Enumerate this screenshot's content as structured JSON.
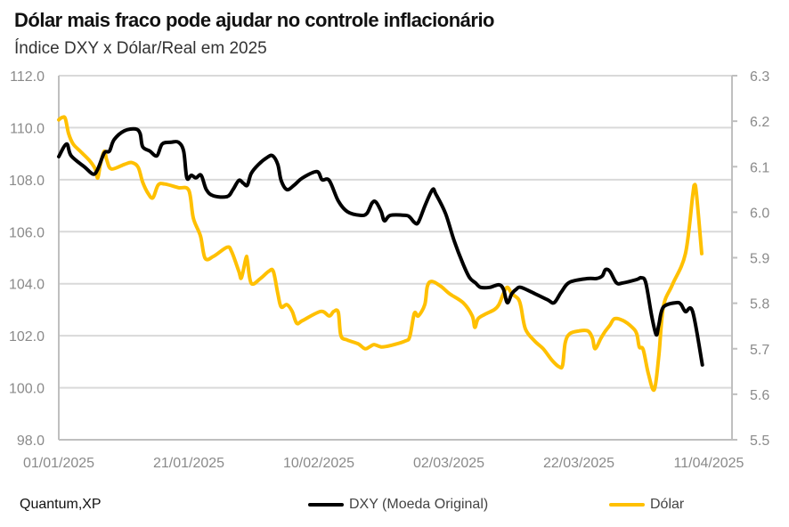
{
  "chart_data": {
    "type": "line",
    "title": "Dólar mais fraco pode ajudar no controle inflacionário",
    "subtitle": "Índice DXY x Dólar/Real em 2025",
    "source": "Quantum,XP",
    "x_unit": "days since 01/01/2025",
    "x_ticks": [
      {
        "day": 0,
        "label": "01/01/2025"
      },
      {
        "day": 20,
        "label": "21/01/2025"
      },
      {
        "day": 40,
        "label": "10/02/2025"
      },
      {
        "day": 60,
        "label": "02/03/2025"
      },
      {
        "day": 80,
        "label": "22/03/2025"
      },
      {
        "day": 100,
        "label": "11/04/2025"
      }
    ],
    "xlim": [
      0,
      100
    ],
    "y_left": {
      "lim": [
        98,
        112
      ],
      "ticks": [
        "98.0",
        "100.0",
        "102.0",
        "104.0",
        "106.0",
        "108.0",
        "110.0",
        "112.0"
      ]
    },
    "y_right": {
      "lim": [
        5.5,
        6.3
      ],
      "ticks": [
        "5.5",
        "5.6",
        "5.7",
        "5.8",
        "5.9",
        "6.0",
        "6.1",
        "6.2",
        "6.3"
      ]
    },
    "grid": true,
    "legend_placement": "bottom",
    "series": [
      {
        "name": "DXY (Moeda Original)",
        "axis": "left",
        "color": "#000000",
        "x": [
          0,
          1.2,
          1.9,
          4,
          5.3,
          6,
          7,
          7.8,
          8.5,
          10.1,
          11.8,
          12.5,
          12.9,
          14,
          15.1,
          15.9,
          17.3,
          18.4,
          19.2,
          19.7,
          20.4,
          21.1,
          21.9,
          22.7,
          23.8,
          25.9,
          26.8,
          27.7,
          28.4,
          29,
          29.6,
          30.7,
          32.1,
          32.9,
          33.7,
          34.2,
          35.1,
          36.2,
          37.5,
          39.7,
          40.5,
          41.6,
          43,
          44.4,
          46.4,
          47.4,
          48.2,
          48.8,
          49.6,
          50.1,
          51,
          53.3,
          54,
          54.7,
          55.3,
          56.4,
          57.5,
          58,
          59.5,
          60.8,
          62.2,
          63.2,
          64.1,
          64.9,
          66.3,
          67.7,
          68.4,
          69,
          69.7,
          70.4,
          71.1,
          73.2,
          75.2,
          76.2,
          77.3,
          78.6,
          81.4,
          82.7,
          83.6,
          84.1,
          84.8,
          85.8,
          86.8,
          88.9,
          89.6,
          90.3,
          91.2,
          91.9,
          92.3,
          93,
          95,
          95.7,
          96.4,
          97.5,
          99
        ],
        "y": [
          108.89,
          109.37,
          108.92,
          108.48,
          108.21,
          108.41,
          109.03,
          109.1,
          109.54,
          109.88,
          109.95,
          109.78,
          109.27,
          109.1,
          108.92,
          109.37,
          109.44,
          109.44,
          109.1,
          108.07,
          108.17,
          108.07,
          108.17,
          107.62,
          107.38,
          107.35,
          107.62,
          107.97,
          107.86,
          107.79,
          108.24,
          108.58,
          108.86,
          108.92,
          108.58,
          107.97,
          107.62,
          107.79,
          108.07,
          108.31,
          108.0,
          107.97,
          107.18,
          106.77,
          106.63,
          106.7,
          107.11,
          107.14,
          106.77,
          106.42,
          106.63,
          106.63,
          106.56,
          106.36,
          106.36,
          107.04,
          107.62,
          107.45,
          106.7,
          105.67,
          104.75,
          104.23,
          104.03,
          103.86,
          103.86,
          103.96,
          103.79,
          103.27,
          103.62,
          103.79,
          103.86,
          103.62,
          103.38,
          103.27,
          103.68,
          104.06,
          104.2,
          104.2,
          104.3,
          104.54,
          104.47,
          104.03,
          104.03,
          104.16,
          104.23,
          104.03,
          102.76,
          102.04,
          102.42,
          103.1,
          103.27,
          103.21,
          102.93,
          102.93,
          100.88
        ]
      },
      {
        "name": "Dólar",
        "axis": "right",
        "color": "#FFC000",
        "x": [
          0,
          0.5,
          1,
          1.5,
          2.2,
          3.3,
          4.7,
          5.6,
          6,
          6.4,
          7,
          7.4,
          8.1,
          10.1,
          11.2,
          12.2,
          12.9,
          13.8,
          14.5,
          15.3,
          16.3,
          18.4,
          20,
          20.7,
          21.8,
          22.5,
          23.8,
          25.9,
          26.6,
          27.7,
          28.1,
          28.8,
          29,
          29.6,
          31,
          32.3,
          33,
          33.7,
          34.2,
          35.1,
          35.9,
          36.6,
          37.5,
          40.3,
          41.6,
          42.3,
          43,
          43.4,
          44.4,
          46,
          47.1,
          47.8,
          48.5,
          49.6,
          51,
          53.3,
          54,
          54.7,
          55.3,
          56.3,
          56.7,
          57.4,
          58.8,
          60.1,
          62.2,
          63.6,
          64,
          64.5,
          65.6,
          67,
          67.7,
          68.4,
          69,
          69.7,
          70.7,
          71.1,
          71.8,
          73.2,
          74.5,
          75.9,
          77,
          77.5,
          77.9,
          78.6,
          80,
          81.4,
          82.1,
          82.5,
          83.4,
          84.1,
          84.8,
          85.5,
          86.8,
          88.2,
          88.9,
          89.3,
          89.9,
          90.7,
          91.6,
          92.3,
          93,
          94.4,
          96.4,
          97.5,
          97.8,
          98.1,
          98.9
        ],
        "y": [
          6.203,
          6.208,
          6.206,
          6.173,
          6.15,
          6.134,
          6.114,
          6.095,
          6.075,
          6.105,
          6.134,
          6.114,
          6.095,
          6.105,
          6.109,
          6.099,
          6.066,
          6.04,
          6.032,
          6.06,
          6.062,
          6.054,
          6.048,
          5.987,
          5.948,
          5.899,
          5.903,
          5.923,
          5.913,
          5.87,
          5.856,
          5.899,
          5.895,
          5.844,
          5.854,
          5.87,
          5.87,
          5.821,
          5.792,
          5.797,
          5.782,
          5.756,
          5.762,
          5.782,
          5.772,
          5.782,
          5.78,
          5.729,
          5.719,
          5.711,
          5.7,
          5.704,
          5.709,
          5.704,
          5.707,
          5.717,
          5.727,
          5.778,
          5.772,
          5.797,
          5.837,
          5.848,
          5.837,
          5.821,
          5.801,
          5.772,
          5.747,
          5.766,
          5.776,
          5.786,
          5.797,
          5.821,
          5.835,
          5.821,
          5.809,
          5.792,
          5.743,
          5.717,
          5.7,
          5.674,
          5.66,
          5.664,
          5.713,
          5.733,
          5.739,
          5.739,
          5.723,
          5.7,
          5.723,
          5.739,
          5.752,
          5.766,
          5.762,
          5.747,
          5.733,
          5.704,
          5.698,
          5.645,
          5.61,
          5.684,
          5.792,
          5.841,
          5.909,
          6.036,
          6.06,
          6.04,
          5.909
        ]
      }
    ]
  }
}
